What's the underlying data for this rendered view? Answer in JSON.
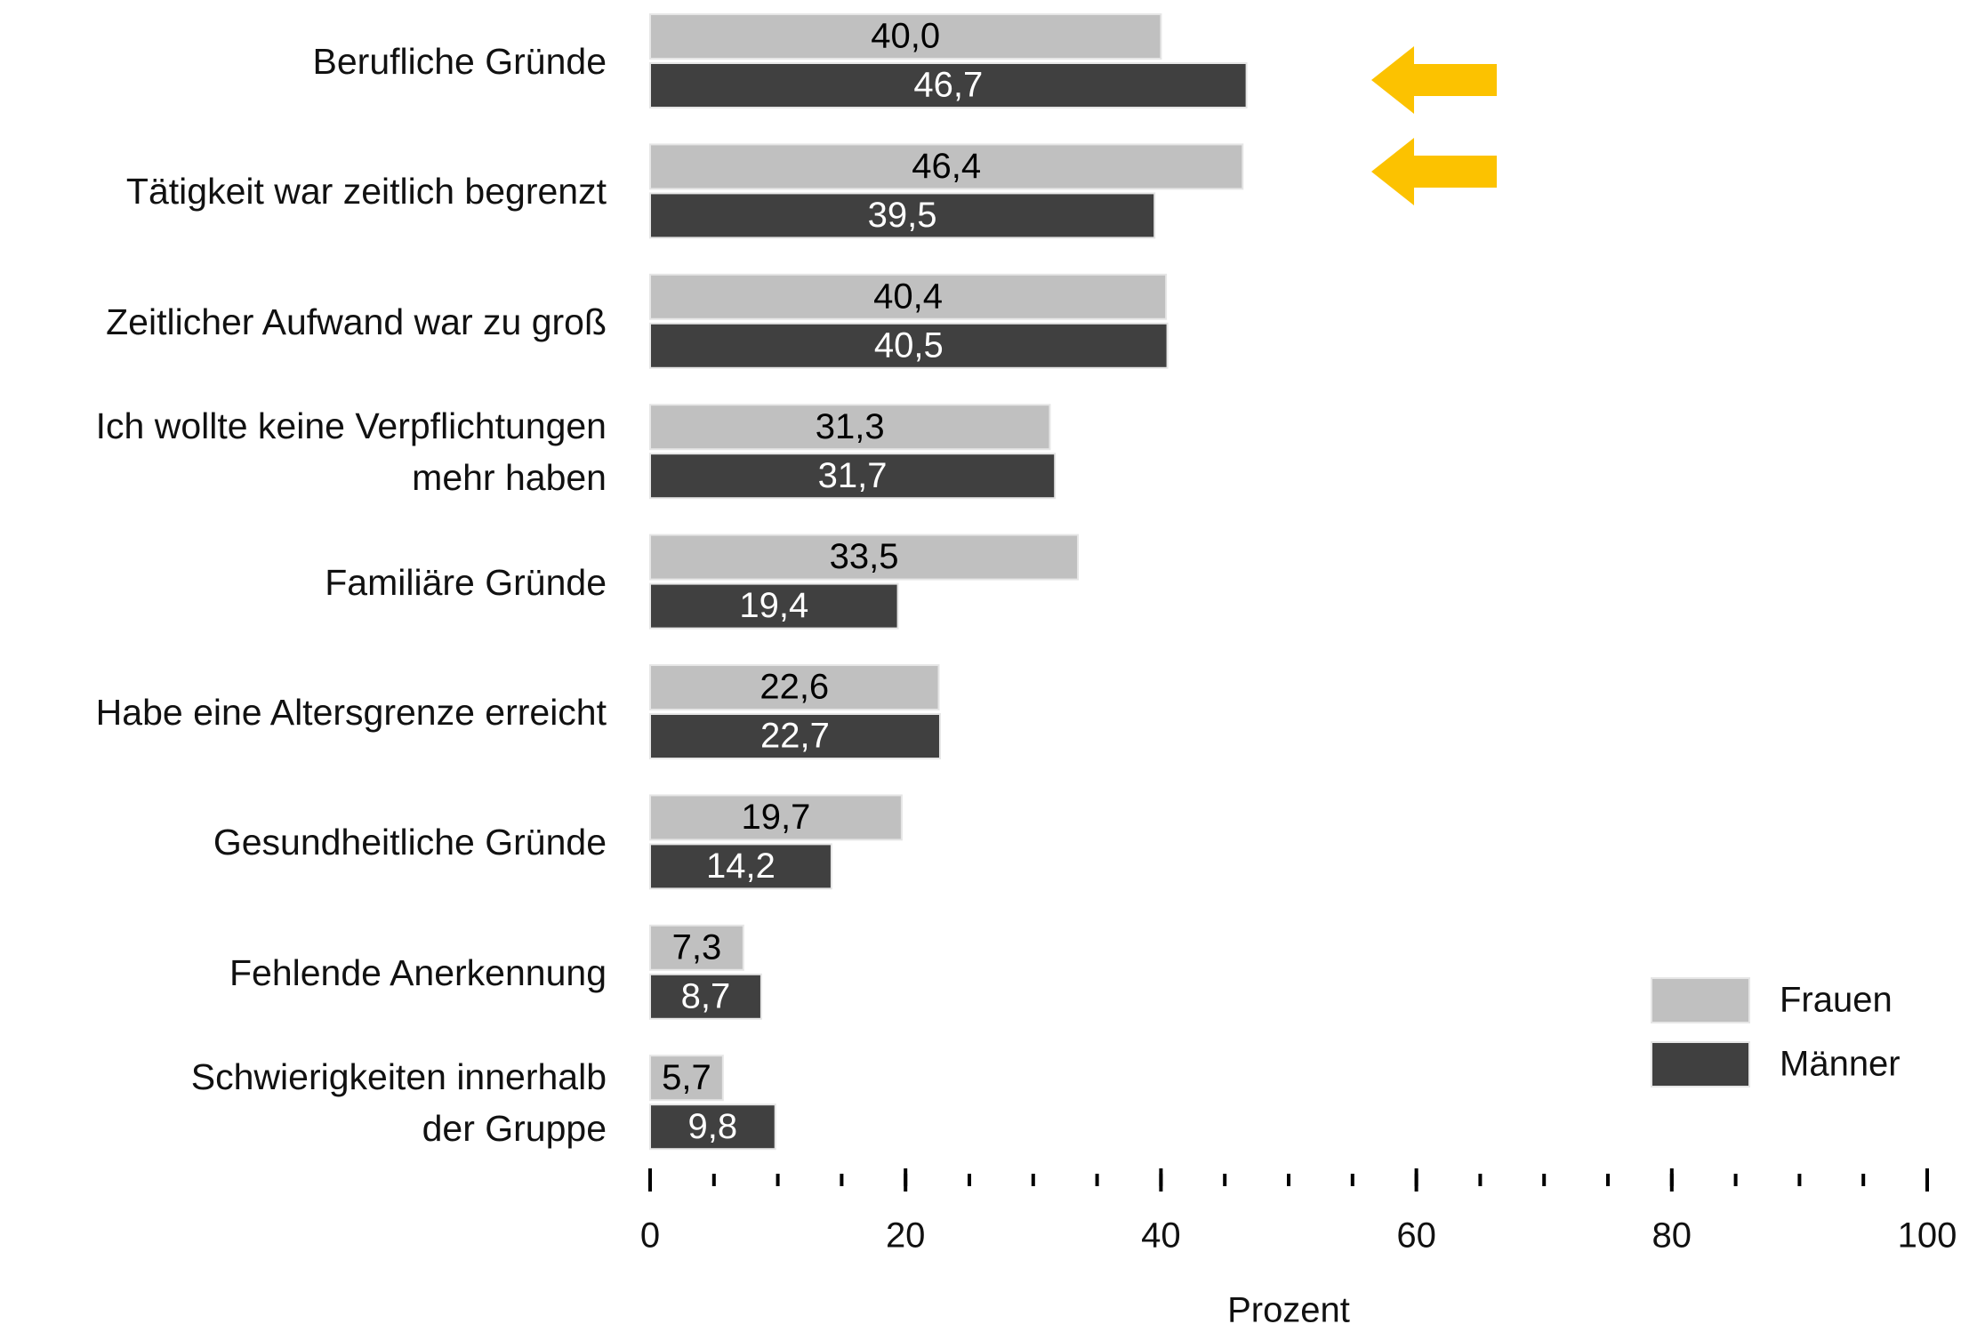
{
  "chart_data": {
    "type": "hbar",
    "categories": [
      "Berufliche Gründe",
      "Tätigkeit war zeitlich begrenzt",
      "Zeitlicher Aufwand war zu groß",
      "Ich wollte keine Verpflichtungen\nmehr haben",
      "Familiäre Gründe",
      "Habe eine Altersgrenze erreicht",
      "Gesundheitliche Gründe",
      "Fehlende Anerkennung",
      "Schwierigkeiten innerhalb\nder Gruppe"
    ],
    "series": [
      {
        "name": "Frauen",
        "color": "#c0c0c0",
        "label_color": "#000000",
        "values": [
          40.0,
          46.4,
          40.4,
          31.3,
          33.5,
          22.6,
          19.7,
          7.3,
          5.7
        ],
        "value_labels": [
          "40,0",
          "46,4",
          "40,4",
          "31,3",
          "33,5",
          "22,6",
          "19,7",
          "7,3",
          "5,7"
        ]
      },
      {
        "name": "Männer",
        "color": "#404040",
        "label_color": "#ffffff",
        "values": [
          46.7,
          39.5,
          40.5,
          31.7,
          19.4,
          22.7,
          14.2,
          8.7,
          9.8
        ],
        "value_labels": [
          "46,7",
          "39,5",
          "40,5",
          "31,7",
          "19,4",
          "22,7",
          "14,2",
          "8,7",
          "9,8"
        ]
      }
    ],
    "xlabel": "Prozent",
    "xlim": [
      0,
      100
    ],
    "xticks": [
      0,
      20,
      40,
      60,
      80,
      100
    ],
    "xminorticks": [
      0,
      5,
      10,
      15,
      20,
      25,
      30,
      35,
      40,
      45,
      50,
      55,
      60,
      65,
      70,
      75,
      80,
      85,
      90,
      95,
      100
    ],
    "legend": "lower right"
  }
}
